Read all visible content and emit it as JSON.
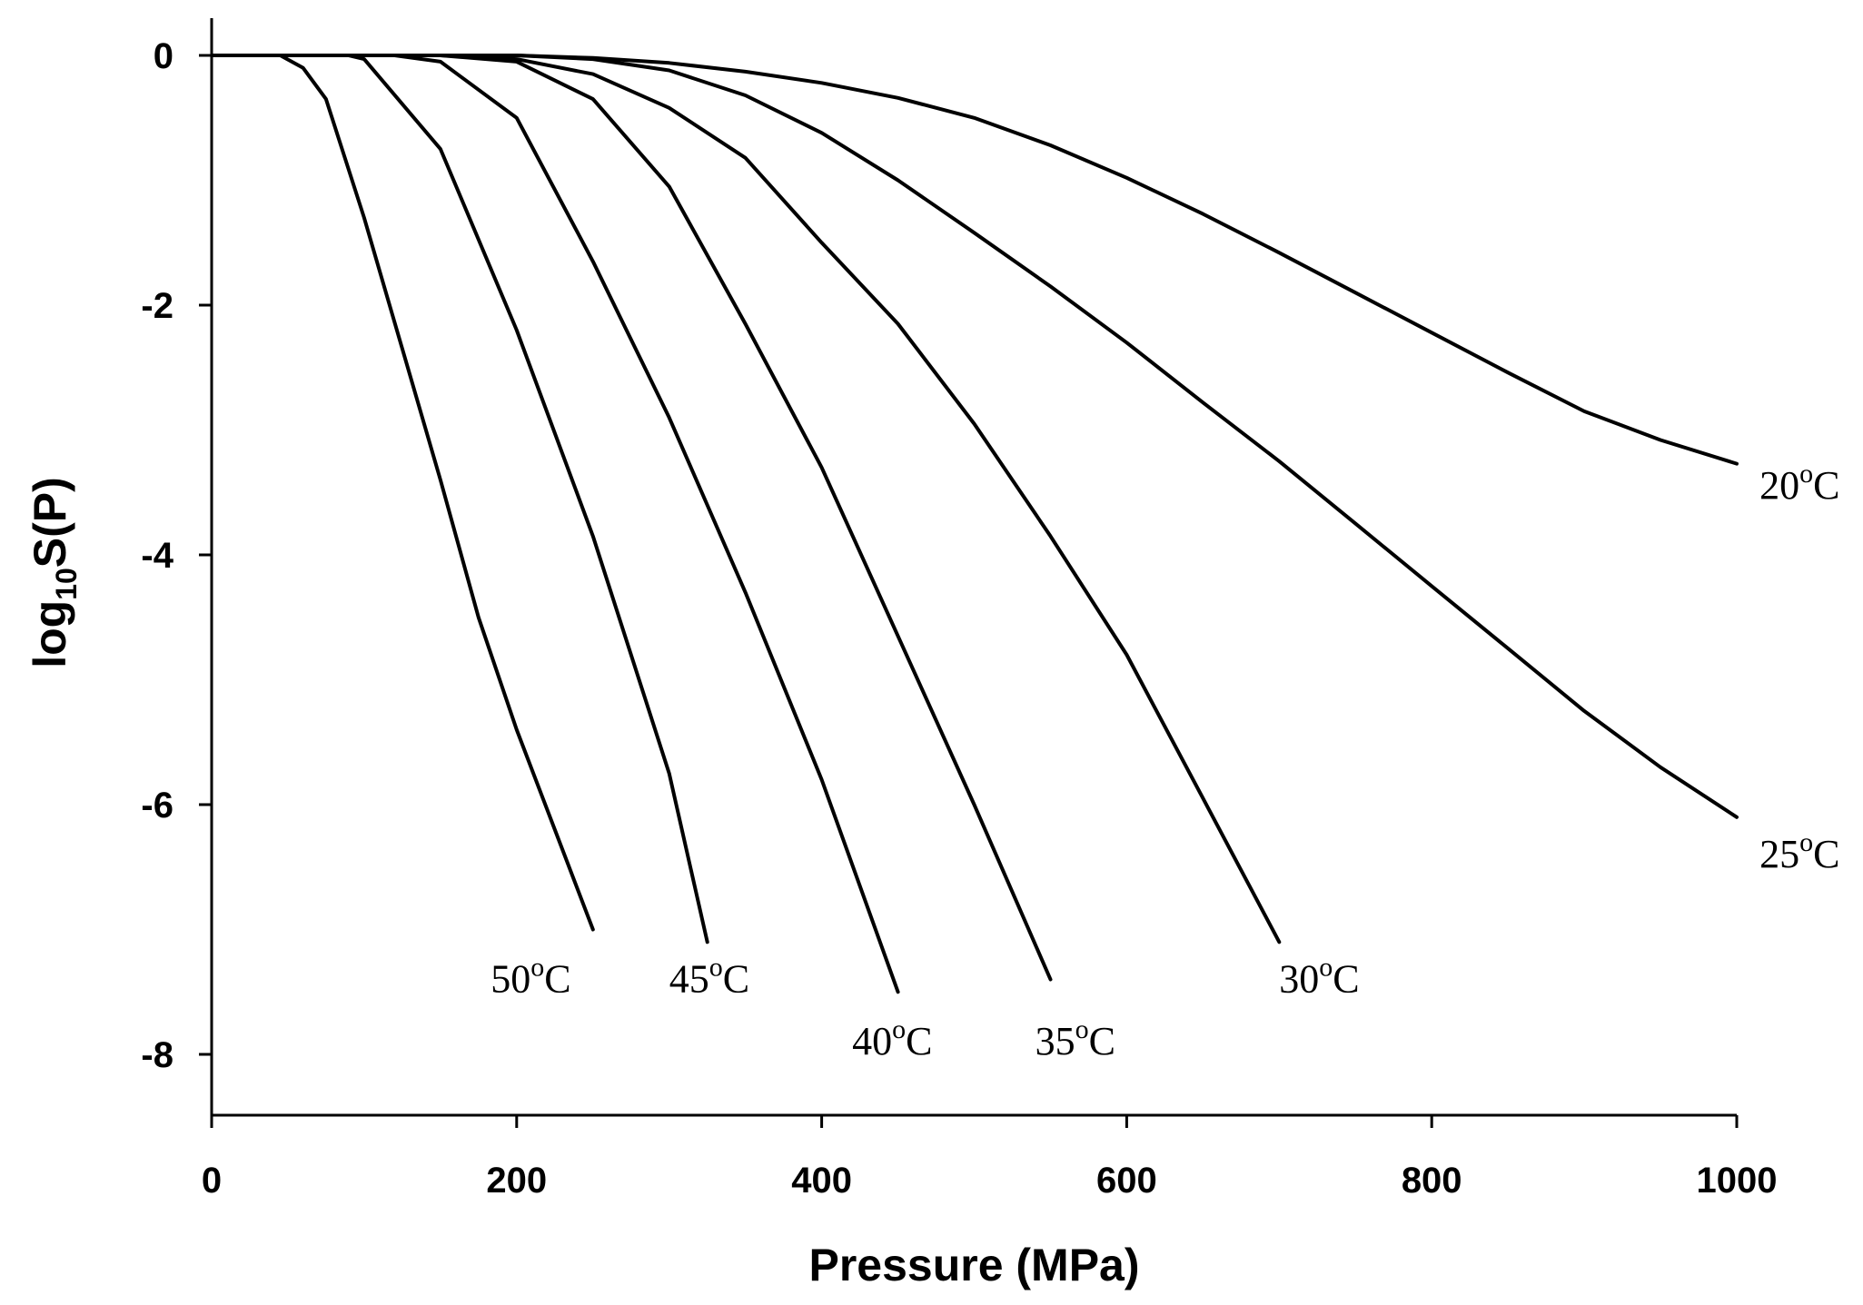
{
  "chart_data": {
    "type": "line",
    "xlabel": "Pressure (MPa)",
    "ylabel": {
      "base": "log",
      "subscript": "10",
      "rest": "S(P)"
    },
    "xlim": [
      0,
      1000
    ],
    "ylim": [
      -8.5,
      0.3
    ],
    "x_ticks": [
      0,
      200,
      400,
      600,
      800,
      1000
    ],
    "y_ticks": [
      0,
      -2,
      -4,
      -6,
      -8
    ],
    "x_tick_labels": [
      "0",
      "200",
      "400",
      "600",
      "800",
      "1000"
    ],
    "y_tick_labels": [
      "0",
      "-2",
      "-4",
      "-6",
      "-8"
    ],
    "grid": false,
    "legend": "none",
    "series": [
      {
        "name": "20°C",
        "label": {
          "num": "20",
          "deg": "o",
          "unit": "C"
        },
        "x": [
          0,
          200,
          250,
          300,
          350,
          400,
          450,
          500,
          550,
          600,
          650,
          700,
          750,
          800,
          850,
          900,
          950,
          1000
        ],
        "y": [
          0,
          0,
          -0.02,
          -0.06,
          -0.13,
          -0.22,
          -0.34,
          -0.5,
          -0.72,
          -0.98,
          -1.27,
          -1.58,
          -1.9,
          -2.22,
          -2.54,
          -2.85,
          -3.08,
          -3.27
        ]
      },
      {
        "name": "25°C",
        "label": {
          "num": "25",
          "deg": "o",
          "unit": "C"
        },
        "x": [
          0,
          200,
          250,
          300,
          350,
          400,
          450,
          500,
          550,
          600,
          650,
          700,
          750,
          800,
          850,
          900,
          950,
          1000
        ],
        "y": [
          0,
          0,
          -0.03,
          -0.12,
          -0.32,
          -0.62,
          -1.0,
          -1.42,
          -1.85,
          -2.3,
          -2.78,
          -3.25,
          -3.75,
          -4.25,
          -4.75,
          -5.25,
          -5.7,
          -6.1
        ]
      },
      {
        "name": "30°C",
        "label": {
          "num": "30",
          "deg": "o",
          "unit": "C"
        },
        "x": [
          0,
          150,
          200,
          250,
          300,
          350,
          400,
          450,
          500,
          550,
          600,
          650,
          700
        ],
        "y": [
          0,
          0,
          -0.03,
          -0.15,
          -0.42,
          -0.82,
          -1.5,
          -2.15,
          -2.95,
          -3.85,
          -4.8,
          -5.95,
          -7.1
        ]
      },
      {
        "name": "35°C",
        "label": {
          "num": "35",
          "deg": "o",
          "unit": "C"
        },
        "x": [
          0,
          150,
          200,
          250,
          300,
          350,
          400,
          450,
          500,
          550
        ],
        "y": [
          0,
          0,
          -0.05,
          -0.35,
          -1.05,
          -2.15,
          -3.3,
          -4.65,
          -6.0,
          -7.4
        ]
      },
      {
        "name": "40°C",
        "label": {
          "num": "40",
          "deg": "o",
          "unit": "C"
        },
        "x": [
          0,
          120,
          150,
          200,
          250,
          300,
          350,
          400,
          450
        ],
        "y": [
          0,
          0,
          -0.05,
          -0.5,
          -1.65,
          -2.9,
          -4.3,
          -5.8,
          -7.5
        ]
      },
      {
        "name": "45°C",
        "label": {
          "num": "45",
          "deg": "o",
          "unit": "C"
        },
        "x": [
          0,
          90,
          100,
          150,
          200,
          250,
          300,
          325
        ],
        "y": [
          0,
          0,
          -0.03,
          -0.75,
          -2.2,
          -3.85,
          -5.75,
          -7.1
        ]
      },
      {
        "name": "50°C",
        "label": {
          "num": "50",
          "deg": "o",
          "unit": "C"
        },
        "x": [
          0,
          45,
          60,
          75,
          100,
          125,
          150,
          175,
          200,
          225,
          250
        ],
        "y": [
          0,
          0,
          -0.1,
          -0.35,
          -1.3,
          -2.35,
          -3.4,
          -4.5,
          -5.4,
          -6.2,
          -7.0
        ]
      }
    ],
    "annotations": [
      {
        "series": "20°C",
        "text": "20°C",
        "x": 1015,
        "y": -3.55
      },
      {
        "series": "25°C",
        "text": "25°C",
        "x": 1015,
        "y": -6.5
      },
      {
        "series": "30°C",
        "text": "30°C",
        "x": 700,
        "y": -7.5
      },
      {
        "series": "35°C",
        "text": "35°C",
        "x": 540,
        "y": -8.0
      },
      {
        "series": "40°C",
        "text": "40°C",
        "x": 420,
        "y": -8.0
      },
      {
        "series": "45°C",
        "text": "45°C",
        "x": 300,
        "y": -7.5
      },
      {
        "series": "50°C",
        "text": "50°C",
        "x": 183,
        "y": -7.5
      }
    ]
  }
}
